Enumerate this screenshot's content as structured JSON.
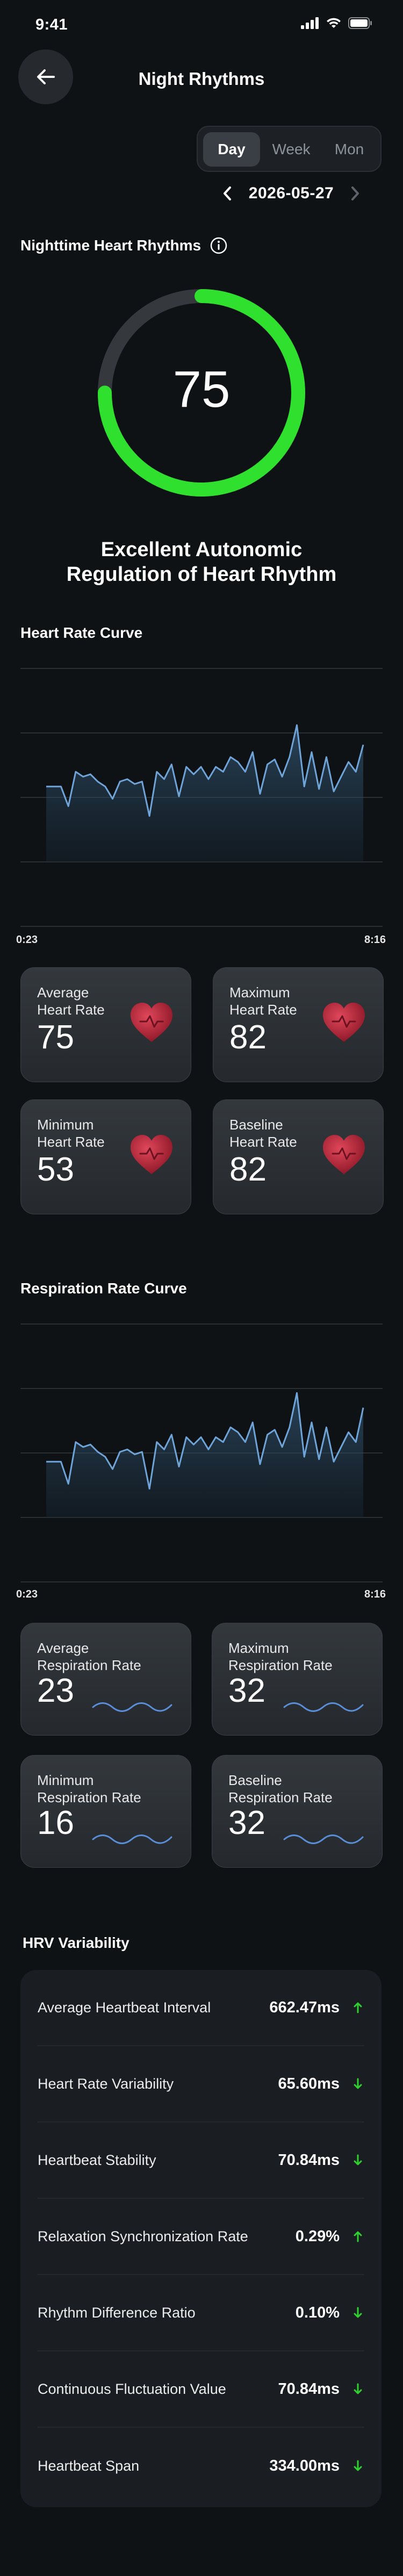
{
  "status_bar": {
    "time": "9:41"
  },
  "header": {
    "title": "Night Rhythms"
  },
  "segmented": {
    "options": [
      "Day",
      "Week",
      "Mon"
    ],
    "selected": "Day"
  },
  "date": "2026-05-27",
  "score_section": {
    "title": "Nighttime Heart Rhythms",
    "score": "75",
    "score_fraction": 0.75,
    "caption_line1": "Excellent Autonomic",
    "caption_line2": "Regulation of Heart Rhythm",
    "accent_color": "#2fe02f"
  },
  "heart_rate_curve": {
    "title": "Heart Rate Curve",
    "start_time": "0:23",
    "end_time": "8:16"
  },
  "heart_rate_cards": [
    {
      "label_line1": "Average",
      "label_line2": "Heart Rate",
      "value": "75",
      "icon": "heart-icon"
    },
    {
      "label_line1": "Maximum",
      "label_line2": "Heart Rate",
      "value": "82",
      "icon": "heart-icon"
    },
    {
      "label_line1": "Minimum",
      "label_line2": "Heart Rate",
      "value": "53",
      "icon": "heart-icon"
    },
    {
      "label_line1": "Baseline",
      "label_line2": "Heart Rate",
      "value": "82",
      "icon": "heart-icon"
    }
  ],
  "respiration_curve": {
    "title": "Respiration Rate Curve",
    "start_time": "0:23",
    "end_time": "8:16"
  },
  "respiration_cards": [
    {
      "label_line1": "Average",
      "label_line2": "Respiration Rate",
      "value": "23",
      "icon": "wave-icon"
    },
    {
      "label_line1": "Maximum",
      "label_line2": "Respiration Rate",
      "value": "32",
      "icon": "wave-icon"
    },
    {
      "label_line1": "Minimum",
      "label_line2": "Respiration Rate",
      "value": "16",
      "icon": "wave-icon"
    },
    {
      "label_line1": "Baseline",
      "label_line2": "Respiration Rate",
      "value": "32",
      "icon": "wave-icon"
    }
  ],
  "hrv": {
    "title": "HRV Variability",
    "rows": [
      {
        "label": "Average Heartbeat Interval",
        "value": "662.47ms",
        "trend": "up"
      },
      {
        "label": "Heart Rate Variability",
        "value": "65.60ms",
        "trend": "down"
      },
      {
        "label": "Heartbeat Stability",
        "value": "70.84ms",
        "trend": "down"
      },
      {
        "label": "Relaxation Synchronization Rate",
        "value": "0.29%",
        "trend": "up"
      },
      {
        "label": "Rhythm Difference Ratio",
        "value": "0.10%",
        "trend": "down"
      },
      {
        "label": "Continuous Fluctuation Value",
        "value": "70.84ms",
        "trend": "down"
      },
      {
        "label": "Heartbeat Span",
        "value": "334.00ms",
        "trend": "down"
      }
    ],
    "up_color": "#2fd12f",
    "down_color": "#2fd12f"
  },
  "colors": {
    "background": "#0e1215",
    "heart": "#c42a3a",
    "wave": "#5a8ed8",
    "line": "#6fa4d8"
  },
  "chart_data": [
    {
      "type": "area",
      "series": [
        {
          "values": [
            52,
            52,
            52,
            44,
            58,
            56,
            57,
            54,
            52,
            47,
            54,
            55,
            53,
            54,
            40,
            58,
            55,
            61,
            48,
            60,
            57,
            60,
            55,
            60,
            58,
            64,
            62,
            58,
            66,
            49,
            61,
            63,
            56,
            64,
            77,
            52,
            66,
            51,
            64,
            50,
            56,
            62,
            58,
            69
          ]
        }
      ]
    },
    {
      "type": "area",
      "series": [
        {
          "values": [
            44,
            44,
            44,
            35,
            52,
            50,
            51,
            48,
            46,
            41,
            48,
            49,
            47,
            48,
            33,
            52,
            49,
            55,
            42,
            54,
            51,
            54,
            49,
            54,
            52,
            58,
            56,
            52,
            60,
            43,
            55,
            57,
            50,
            58,
            72,
            46,
            60,
            45,
            58,
            44,
            50,
            56,
            52,
            66
          ]
        }
      ]
    }
  ]
}
